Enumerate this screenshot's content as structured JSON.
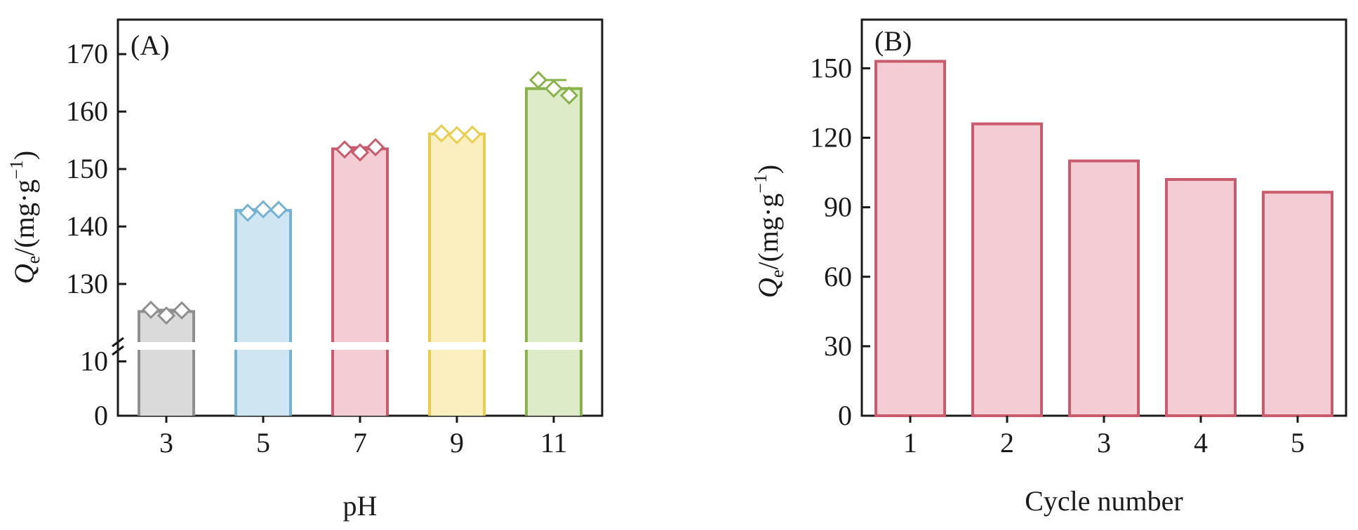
{
  "chart_data": [
    {
      "type": "bar",
      "panel_label": "(A)",
      "xlabel": "pH",
      "ylabel_var": "Q",
      "ylabel_sub": "e",
      "ylabel_unit": "/(mg·g",
      "ylabel_exp": "−1",
      "ylabel_close": ")",
      "categories": [
        "3",
        "5",
        "7",
        "9",
        "11"
      ],
      "values": [
        125.2,
        142.8,
        153.5,
        156.1,
        164.0
      ],
      "points": [
        [
          125.5,
          124.5,
          125.4
        ],
        [
          142.4,
          143.0,
          142.9
        ],
        [
          153.4,
          152.9,
          153.8
        ],
        [
          156.2,
          155.9,
          156.0
        ],
        [
          165.5,
          164.0,
          162.8
        ]
      ],
      "colors": [
        {
          "stroke": "#8f8f8f",
          "fill": "#dadada"
        },
        {
          "stroke": "#74b3d3",
          "fill": "#cfe6f2"
        },
        {
          "stroke": "#c95b6d",
          "fill": "#f3cdd3"
        },
        {
          "stroke": "#e9cd4f",
          "fill": "#fbefbf"
        },
        {
          "stroke": "#88b24a",
          "fill": "#ddebc9"
        }
      ],
      "axis_break": true,
      "ylim_lower": [
        0,
        12
      ],
      "ylim_upper": [
        120,
        176
      ],
      "yticks_lower": [
        "0",
        "10"
      ],
      "yticks_upper": [
        "130",
        "140",
        "150",
        "160",
        "170"
      ],
      "grid": false
    },
    {
      "type": "bar",
      "panel_label": "(B)",
      "xlabel": "Cycle number",
      "ylabel_var": "Q",
      "ylabel_sub": "e",
      "ylabel_unit": "/(mg·g",
      "ylabel_exp": "−1",
      "ylabel_close": ")",
      "categories": [
        "1",
        "2",
        "3",
        "4",
        "5"
      ],
      "values": [
        153,
        126,
        110,
        102,
        96.5
      ],
      "ylim": [
        0,
        171
      ],
      "yticks": [
        "0",
        "30",
        "60",
        "90",
        "120",
        "150"
      ],
      "colors": {
        "stroke": "#c95b6d",
        "fill": "#f3cdd3"
      },
      "grid": false
    }
  ]
}
